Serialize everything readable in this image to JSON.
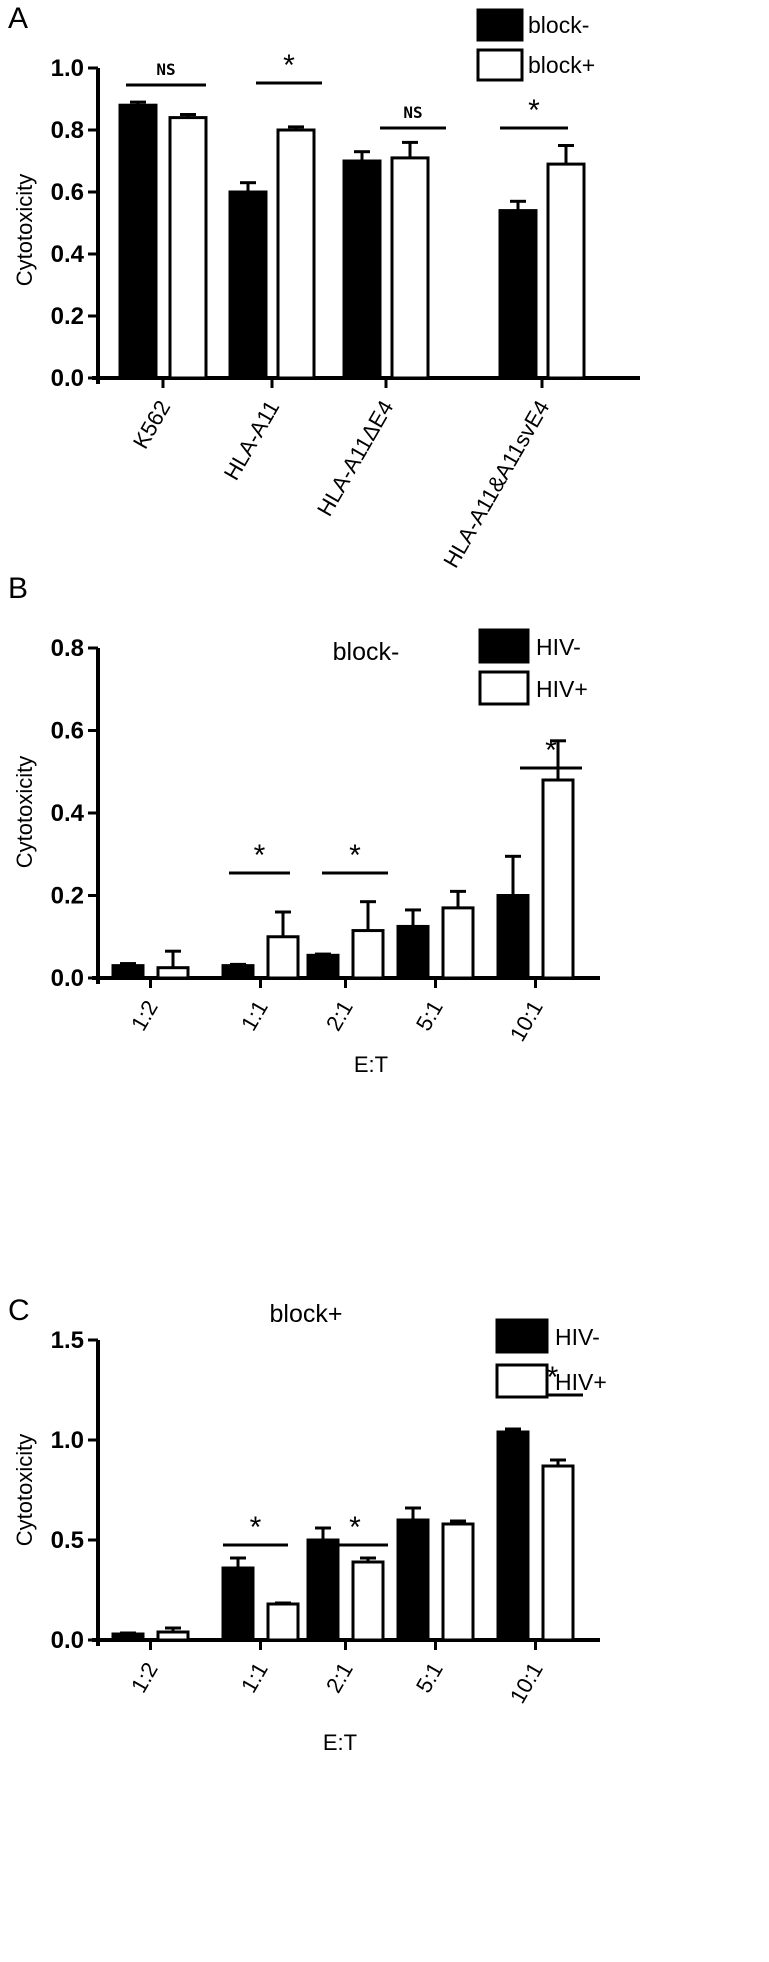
{
  "panels": [
    {
      "letter": "A",
      "title": "",
      "ylabel": "Cytotoxicity",
      "xlabel": "",
      "yticks": [
        "0.0",
        "0.2",
        "0.4",
        "0.6",
        "0.8",
        "1.0"
      ],
      "legend": [
        "block-",
        "block+"
      ],
      "significance": [
        "NS",
        "*",
        "NS",
        "*"
      ]
    },
    {
      "letter": "B",
      "title": "block-",
      "ylabel": "Cytotoxicity",
      "xlabel": "E:T",
      "yticks": [
        "0.0",
        "0.2",
        "0.4",
        "0.6",
        "0.8"
      ],
      "legend": [
        "HIV-",
        "HIV+"
      ],
      "significance": [
        "*",
        "*",
        "*"
      ]
    },
    {
      "letter": "C",
      "title": "block+",
      "ylabel": "Cytotoxicity",
      "xlabel": "E:T",
      "yticks": [
        "0.0",
        "0.5",
        "1.0",
        "1.5"
      ],
      "legend": [
        "HIV-",
        "HIV+"
      ],
      "significance": [
        "*",
        "*",
        "*"
      ]
    }
  ],
  "chart_data": [
    {
      "type": "bar",
      "categories": [
        "K562",
        "HLA-A11",
        "HLA-A11ΔE4",
        "HLA-A11&A11svE4"
      ],
      "series": [
        {
          "name": "block-",
          "values": [
            0.88,
            0.6,
            0.7,
            0.54
          ],
          "errors": [
            0.01,
            0.03,
            0.03,
            0.03
          ],
          "color": "#000000"
        },
        {
          "name": "block+",
          "values": [
            0.84,
            0.8,
            0.71,
            0.69
          ],
          "errors": [
            0.01,
            0.01,
            0.05,
            0.06
          ],
          "color": "#ffffff"
        }
      ],
      "ylabel": "Cytotoxicity",
      "ylim": [
        0,
        1.0
      ],
      "legend_position": "top-right",
      "grid": false
    },
    {
      "type": "bar",
      "title": "block-",
      "categories": [
        "1:2",
        "1:1",
        "2:1",
        "5:1",
        "10:1"
      ],
      "series": [
        {
          "name": "HIV-",
          "values": [
            0.03,
            0.03,
            0.055,
            0.125,
            0.2
          ],
          "errors": [
            0.005,
            0.003,
            0.003,
            0.04,
            0.095
          ],
          "color": "#000000"
        },
        {
          "name": "HIV+",
          "values": [
            0.025,
            0.1,
            0.115,
            0.17,
            0.48
          ],
          "errors": [
            0.04,
            0.06,
            0.07,
            0.04,
            0.095
          ],
          "color": "#ffffff"
        }
      ],
      "xlabel": "E:T",
      "ylabel": "Cytotoxicity",
      "ylim": [
        0,
        0.8
      ],
      "legend_position": "top-right",
      "grid": false
    },
    {
      "type": "bar",
      "title": "block+",
      "categories": [
        "1:2",
        "1:1",
        "2:1",
        "5:1",
        "10:1"
      ],
      "series": [
        {
          "name": "HIV-",
          "values": [
            0.03,
            0.36,
            0.5,
            0.6,
            1.04
          ],
          "errors": [
            0.005,
            0.05,
            0.06,
            0.06,
            0.015
          ],
          "color": "#000000"
        },
        {
          "name": "HIV+",
          "values": [
            0.04,
            0.18,
            0.39,
            0.58,
            0.87
          ],
          "errors": [
            0.02,
            0.005,
            0.02,
            0.015,
            0.03
          ],
          "color": "#ffffff"
        }
      ],
      "xlabel": "E:T",
      "ylabel": "Cytotoxicity",
      "ylim": [
        0,
        1.5
      ],
      "legend_position": "top-right",
      "grid": false
    }
  ]
}
